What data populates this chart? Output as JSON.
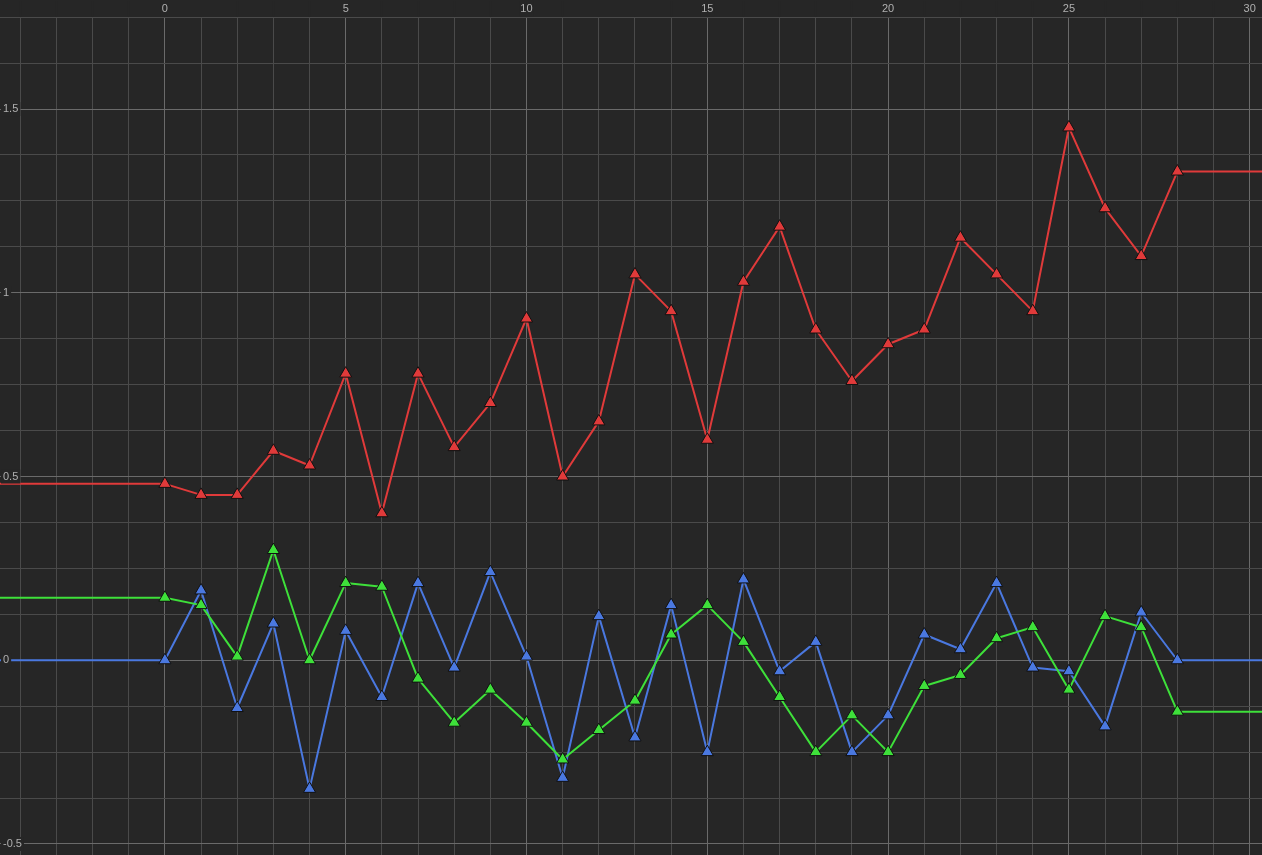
{
  "chart_data": {
    "type": "line",
    "marker": "triangle",
    "line_style": "solid",
    "grid": true,
    "legend": false,
    "x": [
      -4.56,
      0,
      1,
      2,
      3,
      4,
      5,
      6,
      7,
      8,
      9,
      10,
      11,
      12,
      13,
      14,
      15,
      16,
      17,
      18,
      19,
      20,
      21,
      22,
      23,
      24,
      25,
      26,
      27,
      28,
      30.34
    ],
    "xlim": [
      -4.56,
      30.34
    ],
    "ylim": [
      -0.53,
      1.75
    ],
    "xticks": [
      {
        "value": -4,
        "label": null
      },
      {
        "value": -3,
        "label": null
      },
      {
        "value": -2,
        "label": null
      },
      {
        "value": -1,
        "label": null
      },
      0,
      {
        "value": 1,
        "label": null
      },
      {
        "value": 2,
        "label": null
      },
      {
        "value": 3,
        "label": null
      },
      {
        "value": 4,
        "label": null
      },
      5,
      {
        "value": 6,
        "label": null
      },
      {
        "value": 7,
        "label": null
      },
      {
        "value": 8,
        "label": null
      },
      {
        "value": 9,
        "label": null
      },
      10,
      {
        "value": 11,
        "label": null
      },
      {
        "value": 12,
        "label": null
      },
      {
        "value": 13,
        "label": null
      },
      {
        "value": 14,
        "label": null
      },
      15,
      {
        "value": 16,
        "label": null
      },
      {
        "value": 17,
        "label": null
      },
      {
        "value": 18,
        "label": null
      },
      {
        "value": 19,
        "label": null
      },
      20,
      {
        "value": 21,
        "label": null
      },
      {
        "value": 22,
        "label": null
      },
      {
        "value": 23,
        "label": null
      },
      {
        "value": 24,
        "label": null
      },
      25,
      {
        "value": 26,
        "label": null
      },
      {
        "value": 27,
        "label": null
      },
      {
        "value": 28,
        "label": null
      },
      {
        "value": 29,
        "label": null
      },
      30
    ],
    "yticks": [
      -0.5,
      {
        "value": -0.375,
        "label": null
      },
      {
        "value": -0.25,
        "label": null
      },
      {
        "value": -0.125,
        "label": null
      },
      0,
      {
        "value": 0.125,
        "label": null
      },
      {
        "value": 0.25,
        "label": null
      },
      {
        "value": 0.375,
        "label": null
      },
      0.5,
      {
        "value": 0.625,
        "label": null
      },
      {
        "value": 0.75,
        "label": null
      },
      {
        "value": 0.875,
        "label": null
      },
      1,
      {
        "value": 1.125,
        "label": null
      },
      {
        "value": 1.25,
        "label": null
      },
      {
        "value": 1.375,
        "label": null
      },
      1.5,
      {
        "value": 1.625,
        "label": null
      },
      {
        "value": 1.75,
        "label": null
      }
    ],
    "series": [
      {
        "color": "#e03a3a",
        "values": [
          0.48,
          0.48,
          0.45,
          0.45,
          0.57,
          0.53,
          0.78,
          0.4,
          0.78,
          0.58,
          0.7,
          0.93,
          0.5,
          0.65,
          1.05,
          0.95,
          0.6,
          1.03,
          1.18,
          0.9,
          0.76,
          0.86,
          0.9,
          1.15,
          1.05,
          0.95,
          1.45,
          1.23,
          1.1,
          1.33,
          1.33
        ]
      },
      {
        "color": "#3ee03a",
        "values": [
          0.17,
          0.17,
          0.15,
          0.01,
          0.3,
          0.0,
          0.21,
          0.2,
          -0.05,
          -0.17,
          -0.08,
          -0.17,
          -0.27,
          -0.19,
          -0.11,
          0.07,
          0.15,
          0.05,
          -0.1,
          -0.25,
          -0.15,
          -0.25,
          -0.07,
          -0.04,
          0.06,
          0.09,
          -0.08,
          0.12,
          0.09,
          -0.14,
          -0.14
        ]
      },
      {
        "color": "#4a78e0",
        "values": [
          0.0,
          0.0,
          0.19,
          -0.13,
          0.1,
          -0.35,
          0.08,
          -0.1,
          0.21,
          -0.02,
          0.24,
          0.01,
          -0.32,
          0.12,
          -0.21,
          0.15,
          -0.25,
          0.22,
          -0.03,
          0.05,
          -0.25,
          -0.15,
          0.07,
          0.03,
          0.21,
          -0.02,
          -0.03,
          -0.18,
          0.13,
          0.0,
          0.0
        ]
      }
    ]
  }
}
